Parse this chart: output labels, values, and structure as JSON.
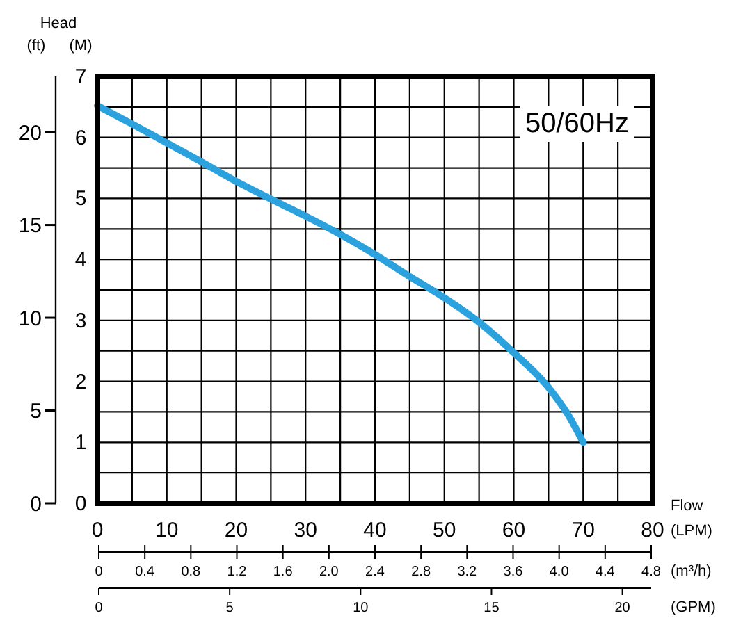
{
  "chart_data": {
    "type": "line",
    "xlabel": "Flow (LPM)",
    "ylabel": "(M)",
    "y2label": "Head (ft)",
    "x2label": "(GPM)",
    "annotations": [
      "50/60Hz",
      "0",
      "0.4",
      "0.8",
      "1.2",
      "1.6",
      "2.0",
      "2.4",
      "2.8",
      "3.2",
      "3.6",
      "4.0",
      "4.4",
      "4.8",
      "(m³/h)"
    ],
    "x": [
      0,
      5,
      10,
      15,
      20,
      25,
      30,
      35,
      40,
      45,
      50,
      55,
      60,
      65,
      68,
      70
    ],
    "series": [
      {
        "color": "#2ba2de",
        "values": [
          6.52,
          6.22,
          5.91,
          5.6,
          5.28,
          4.99,
          4.71,
          4.41,
          4.08,
          3.72,
          3.37,
          2.97,
          2.47,
          1.9,
          1.42,
          1.0
        ]
      }
    ],
    "xlim": [
      0,
      80
    ],
    "ylim": [
      0,
      7
    ],
    "xticks": [
      0,
      {
        "value": 5,
        "label": null
      },
      10,
      {
        "value": 15,
        "label": null
      },
      20,
      {
        "value": 25,
        "label": null
      },
      30,
      {
        "value": 35,
        "label": null
      },
      40,
      {
        "value": 45,
        "label": null
      },
      50,
      {
        "value": 55,
        "label": null
      },
      60,
      {
        "value": 65,
        "label": null
      },
      70,
      {
        "value": 75,
        "label": null
      },
      80
    ],
    "yticks": [
      0,
      {
        "value": 0.5,
        "label": null
      },
      1,
      {
        "value": 1.5,
        "label": null
      },
      2,
      {
        "value": 2.5,
        "label": null
      },
      3,
      {
        "value": 3.5,
        "label": null
      },
      4,
      {
        "value": 4.5,
        "label": null
      },
      5,
      {
        "value": 5.5,
        "label": null
      },
      6,
      {
        "value": 6.5,
        "label": null
      },
      7
    ],
    "y2lim": [
      0,
      23
    ],
    "y2ticks": [
      0,
      5,
      10,
      15,
      20
    ],
    "x2lim": [
      0,
      21.1
    ],
    "x2ticks": [
      0,
      5,
      10,
      15,
      20
    ],
    "grid": true
  }
}
